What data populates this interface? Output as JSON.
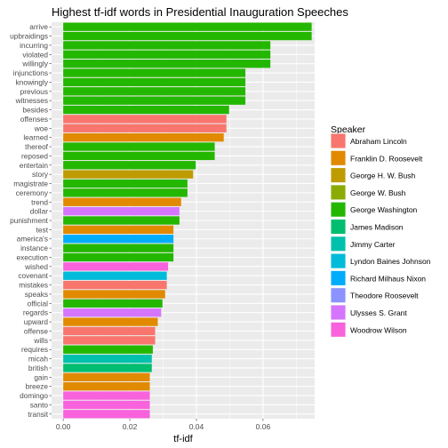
{
  "chart_data": {
    "type": "bar",
    "orientation": "horizontal",
    "title": "Highest tf-idf words in Presidential Inauguration Speeches",
    "xlabel": "tf-idf",
    "ylabel": "",
    "xlim": [
      -0.0035,
      0.0755
    ],
    "xticks": [
      0.0,
      0.02,
      0.04,
      0.06
    ],
    "xtick_labels": [
      "0.00",
      "0.02",
      "0.04",
      "0.06"
    ],
    "grid": true,
    "legend": {
      "title": "Speaker",
      "position": "right",
      "entries": [
        {
          "name": "Abraham Lincoln",
          "color": "#F8766D"
        },
        {
          "name": "Franklin D. Roosevelt",
          "color": "#E18A00"
        },
        {
          "name": "George H. W. Bush",
          "color": "#BE9C00"
        },
        {
          "name": "George W. Bush",
          "color": "#8CAB00"
        },
        {
          "name": "George Washington",
          "color": "#24B700"
        },
        {
          "name": "James Madison",
          "color": "#00BE70"
        },
        {
          "name": "Jimmy Carter",
          "color": "#00C1AB"
        },
        {
          "name": "Lyndon Baines Johnson",
          "color": "#00BBDA"
        },
        {
          "name": "Richard Milhaus Nixon",
          "color": "#00ACFC"
        },
        {
          "name": "Theodore Roosevelt",
          "color": "#8B93FF"
        },
        {
          "name": "Ulysses S. Grant",
          "color": "#D575FE"
        },
        {
          "name": "Woodrow Wilson",
          "color": "#F962DD"
        }
      ]
    },
    "bars": [
      {
        "word": "arrive",
        "value": 0.0746,
        "speaker": "George Washington"
      },
      {
        "word": "upbraidings",
        "value": 0.0746,
        "speaker": "George Washington"
      },
      {
        "word": "incurring",
        "value": 0.0622,
        "speaker": "George Washington"
      },
      {
        "word": "violated",
        "value": 0.0622,
        "speaker": "George Washington"
      },
      {
        "word": "willingly",
        "value": 0.0622,
        "speaker": "George Washington"
      },
      {
        "word": "injunctions",
        "value": 0.0547,
        "speaker": "George Washington"
      },
      {
        "word": "knowingly",
        "value": 0.0547,
        "speaker": "George Washington"
      },
      {
        "word": "previous",
        "value": 0.0547,
        "speaker": "George Washington"
      },
      {
        "word": "witnesses",
        "value": 0.0547,
        "speaker": "George Washington"
      },
      {
        "word": "besides",
        "value": 0.0498,
        "speaker": "George Washington"
      },
      {
        "word": "offenses",
        "value": 0.049,
        "speaker": "Abraham Lincoln"
      },
      {
        "word": "woe",
        "value": 0.049,
        "speaker": "Abraham Lincoln"
      },
      {
        "word": "learned",
        "value": 0.0482,
        "speaker": "Franklin D. Roosevelt"
      },
      {
        "word": "thereof",
        "value": 0.0455,
        "speaker": "George Washington"
      },
      {
        "word": "reposed",
        "value": 0.0455,
        "speaker": "George Washington"
      },
      {
        "word": "entertain",
        "value": 0.0398,
        "speaker": "George Washington"
      },
      {
        "word": "story",
        "value": 0.039,
        "speaker": "George H. W. Bush"
      },
      {
        "word": "magistrate",
        "value": 0.0373,
        "speaker": "George Washington"
      },
      {
        "word": "ceremony",
        "value": 0.0373,
        "speaker": "George Washington"
      },
      {
        "word": "trend",
        "value": 0.0354,
        "speaker": "Franklin D. Roosevelt"
      },
      {
        "word": "dollar",
        "value": 0.0349,
        "speaker": "Ulysses S. Grant"
      },
      {
        "word": "punishment",
        "value": 0.0349,
        "speaker": "George Washington"
      },
      {
        "word": "test",
        "value": 0.0331,
        "speaker": "Franklin D. Roosevelt"
      },
      {
        "word": "america's",
        "value": 0.0331,
        "speaker": "Richard Milhaus Nixon"
      },
      {
        "word": "instance",
        "value": 0.0331,
        "speaker": "George Washington"
      },
      {
        "word": "execution",
        "value": 0.0331,
        "speaker": "George Washington"
      },
      {
        "word": "wished",
        "value": 0.0315,
        "speaker": "Woodrow Wilson"
      },
      {
        "word": "covenant",
        "value": 0.0311,
        "speaker": "Lyndon Baines Johnson"
      },
      {
        "word": "mistakes",
        "value": 0.0311,
        "speaker": "Abraham Lincoln"
      },
      {
        "word": "speaks",
        "value": 0.0306,
        "speaker": "Franklin D. Roosevelt"
      },
      {
        "word": "official",
        "value": 0.0298,
        "speaker": "George Washington"
      },
      {
        "word": "regards",
        "value": 0.0294,
        "speaker": "Ulysses S. Grant"
      },
      {
        "word": "upward",
        "value": 0.0284,
        "speaker": "Franklin D. Roosevelt"
      },
      {
        "word": "offense",
        "value": 0.0276,
        "speaker": "Abraham Lincoln"
      },
      {
        "word": "wills",
        "value": 0.0276,
        "speaker": "Abraham Lincoln"
      },
      {
        "word": "requires",
        "value": 0.0269,
        "speaker": "George Washington"
      },
      {
        "word": "micah",
        "value": 0.0266,
        "speaker": "Jimmy Carter"
      },
      {
        "word": "british",
        "value": 0.0266,
        "speaker": "James Madison"
      },
      {
        "word": "gain",
        "value": 0.026,
        "speaker": "Franklin D. Roosevelt"
      },
      {
        "word": "breeze",
        "value": 0.026,
        "speaker": "Franklin D. Roosevelt"
      },
      {
        "word": "domingo",
        "value": 0.026,
        "speaker": "Woodrow Wilson"
      },
      {
        "word": "santo",
        "value": 0.026,
        "speaker": "Woodrow Wilson"
      },
      {
        "word": "transit",
        "value": 0.026,
        "speaker": "Woodrow Wilson"
      }
    ]
  }
}
